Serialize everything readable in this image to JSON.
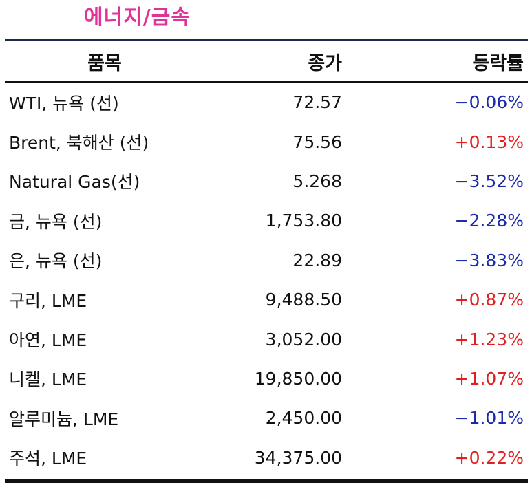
{
  "title": "에너지/금속",
  "colors": {
    "title": "#e0339a",
    "positive": "#e02020",
    "negative": "#1a2aa8",
    "header_rule": "#1f2a4d"
  },
  "table": {
    "headers": {
      "name": "품목",
      "close": "종가",
      "change": "등락률"
    },
    "rows": [
      {
        "name": "WTI, 뉴욕 (선)",
        "close": "72.57",
        "change": "−0.06%",
        "direction": "neg"
      },
      {
        "name": "Brent, 북해산 (선)",
        "close": "75.56",
        "change": "+0.13%",
        "direction": "pos"
      },
      {
        "name": "Natural Gas(선)",
        "close": "5.268",
        "change": "−3.52%",
        "direction": "neg"
      },
      {
        "name": "금, 뉴욕  (선)",
        "close": "1,753.80",
        "change": "−2.28%",
        "direction": "neg"
      },
      {
        "name": "은, 뉴욕  (선)",
        "close": "22.89",
        "change": "−3.83%",
        "direction": "neg"
      },
      {
        "name": "구리, LME",
        "close": "9,488.50",
        "change": "+0.87%",
        "direction": "pos"
      },
      {
        "name": "아연, LME",
        "close": "3,052.00",
        "change": "+1.23%",
        "direction": "pos"
      },
      {
        "name": "니켈, LME",
        "close": "19,850.00",
        "change": "+1.07%",
        "direction": "pos"
      },
      {
        "name": "알루미늄, LME",
        "close": "2,450.00",
        "change": "−1.01%",
        "direction": "neg"
      },
      {
        "name": "주석, LME",
        "close": "34,375.00",
        "change": "+0.22%",
        "direction": "pos"
      }
    ]
  }
}
